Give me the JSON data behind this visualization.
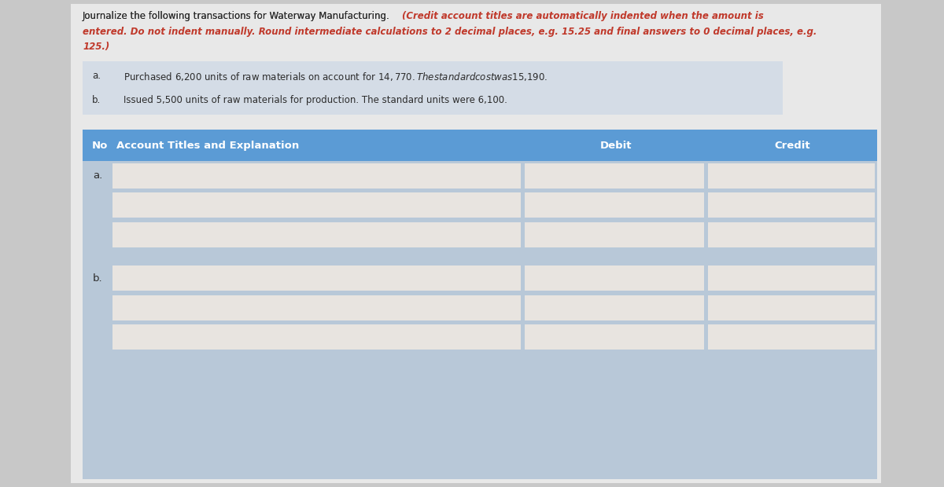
{
  "page_bg": "#c8c8c8",
  "content_bg": "#e8e8e8",
  "header_normal": "Journalize the following transactions for Waterway Manufacturing. ",
  "header_red_line1": "(Credit account titles are automatically indented when the amount is",
  "header_red_line2": "entered. Do not indent manually. Round intermediate calculations to 2 decimal places, e.g. 15.25 and final answers to 0 decimal places, e.g.",
  "header_red_line3": "125.)",
  "transaction_a_label": "a.",
  "transaction_a_text": "Purchased 6,200 units of raw materials on account for $14,770. The standard cost was $15,190.",
  "transaction_b_label": "b.",
  "transaction_b_text": "Issued 5,500 units of raw materials for production. The standard units were 6,100.",
  "trans_box_bg": "#d4dce6",
  "table_header_bg": "#5b9bd5",
  "table_header_text_color": "#ffffff",
  "table_bg": "#b8c8d8",
  "cell_bg": "#e8e4e0",
  "red_color": "#c0392b",
  "normal_text_color": "#2c2c2c",
  "col_no_label": "No",
  "col_account_label": "Account Titles and Explanation",
  "col_debit_label": "Debit",
  "col_credit_label": "Credit",
  "row_a_label": "a.",
  "row_b_label": "b.",
  "fontsize_header": 8.5,
  "fontsize_table": 9.5
}
